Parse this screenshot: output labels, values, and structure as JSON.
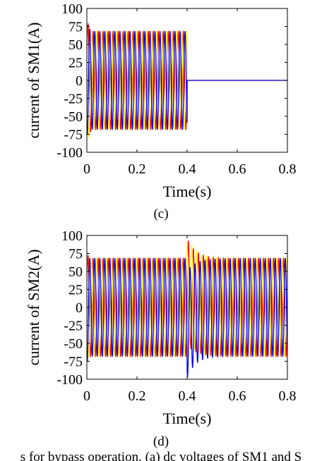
{
  "chart_data": [
    {
      "type": "line",
      "panel": "(c)",
      "xlabel": "Time(s)",
      "ylabel": "current of SM1(A)",
      "xlim": [
        0,
        0.8
      ],
      "ylim": [
        -100,
        100
      ],
      "xticks": [
        "0",
        "0.2",
        "0.4",
        "0.6",
        "0.8"
      ],
      "yticks": [
        "100",
        "75",
        "50",
        "25",
        "0",
        "-25",
        "-50",
        "-75",
        "-100"
      ],
      "series": [
        {
          "color": "#ff0000",
          "amplitude": 68,
          "cutoff_time": 0.4,
          "peak": 82
        },
        {
          "color": "#ffff00",
          "amplitude": 68,
          "cutoff_time": 0.4,
          "peak": 86
        },
        {
          "color": "#0000ff",
          "amplitude": 68,
          "cutoff_time": 0.4,
          "peak": 76
        }
      ],
      "frequency_hz": 50,
      "after_cutoff_value": 0
    },
    {
      "type": "line",
      "panel": "(d)",
      "xlabel": "Time(s)",
      "ylabel": "current of SM2(A)",
      "xlim": [
        0,
        0.8
      ],
      "ylim": [
        -100,
        100
      ],
      "xticks": [
        "0",
        "0.2",
        "0.4",
        "0.6",
        "0.8"
      ],
      "yticks": [
        "100",
        "75",
        "50",
        "25",
        "0",
        "-25",
        "-50",
        "-75",
        "-100"
      ],
      "series": [
        {
          "color": "#ff0000",
          "amplitude": 68
        },
        {
          "color": "#ffff00",
          "amplitude": 68
        },
        {
          "color": "#0000ff",
          "amplitude": 68
        }
      ],
      "frequency_hz": 50,
      "transient_time": 0.4,
      "transient_peak": 98
    }
  ],
  "caption": "s for bypass operation. (a) dc voltages of SM1 and S"
}
